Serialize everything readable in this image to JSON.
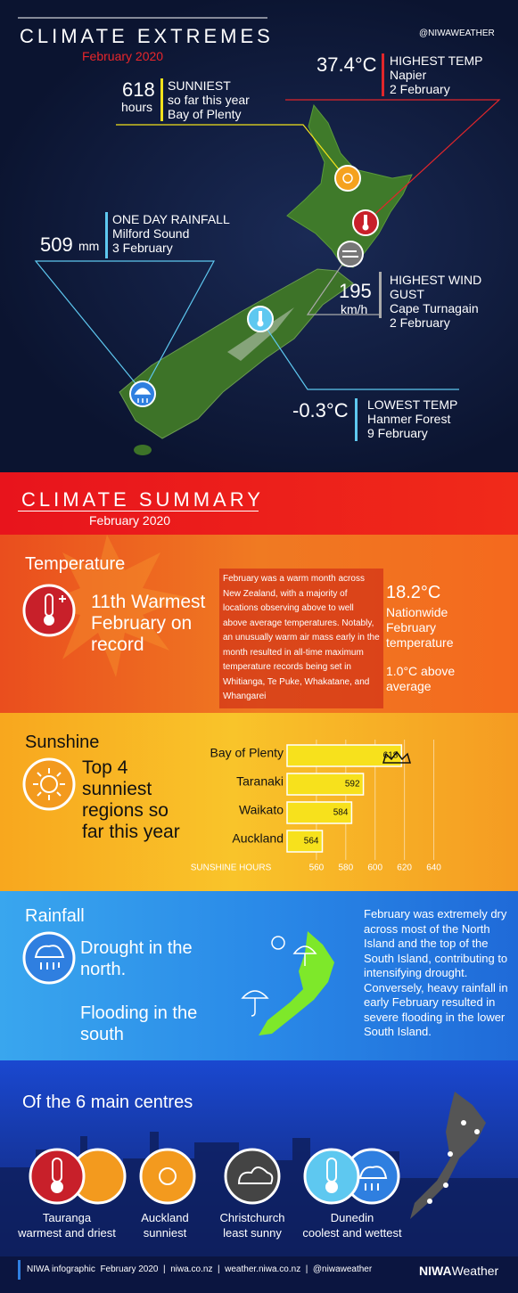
{
  "header": {
    "title": "CLIMATE EXTREMES",
    "subtitle": "February 2020",
    "handle": "@NIWAWEATHER"
  },
  "extremes": {
    "sunniest": {
      "value": "618",
      "unit": "hours",
      "lines": [
        "SUNNIEST",
        "so far this year",
        "Bay of Plenty"
      ]
    },
    "highest_temp": {
      "value": "37.4°C",
      "lines": [
        "HIGHEST TEMP",
        "Napier",
        "2 February"
      ]
    },
    "rainfall": {
      "value": "509",
      "unit": "mm",
      "lines": [
        "ONE DAY RAINFALL",
        "Milford Sound",
        "3 February"
      ]
    },
    "wind": {
      "value": "195",
      "unit": "km/h",
      "lines": [
        "HIGHEST WIND GUST",
        "Cape Turnagain",
        "2 February"
      ]
    },
    "lowest_temp": {
      "value": "-0.3°C",
      "lines": [
        "LOWEST TEMP",
        "Hanmer Forest",
        "9 February"
      ]
    }
  },
  "summary": {
    "title": "CLIMATE SUMMARY",
    "subtitle": "February 2020"
  },
  "temperature": {
    "heading": "Temperature",
    "headline": [
      "11th Warmest",
      "February on",
      "record"
    ],
    "text": "February was a warm month across New Zealand, with a majority of locations observing above to well above average temperatures. Notably, an unusually warm air mass early in the month resulted in all-time maximum temperature records being set in Whitianga, Te Puke, Whakatane, and Whangarei",
    "stat": "18.2°C",
    "stat_label": [
      "Nationwide",
      "February",
      "temperature"
    ],
    "anomaly": [
      "1.0°C above",
      "average"
    ]
  },
  "sunshine": {
    "heading": "Sunshine",
    "headline": [
      "Top 4",
      "sunniest",
      "regions so",
      "far this year"
    ],
    "chart": {
      "type": "bar",
      "orientation": "horizontal",
      "categories": [
        "Bay of Plenty",
        "Taranaki",
        "Waikato",
        "Auckland"
      ],
      "values": [
        618,
        592,
        584,
        564
      ],
      "color": "#f7e11c",
      "xlim": [
        540,
        650
      ],
      "xticks": [
        560,
        580,
        600,
        620,
        640
      ],
      "xlabel": "SUNSHINE HOURS"
    }
  },
  "rainfall": {
    "heading": "Rainfall",
    "points": [
      [
        "Drought in the",
        "north."
      ],
      [
        "Flooding in the",
        "south"
      ]
    ],
    "text": "February was extremely dry across most of the North Island and the top of the South Island, contributing to intensifying drought. Conversely, heavy rainfall in early February resulted in severe flooding in the lower South Island."
  },
  "centres": {
    "heading": "Of the 6 main centres",
    "items": [
      {
        "city": "Tauranga",
        "note": "warmest and driest"
      },
      {
        "city": "Auckland",
        "note": "sunniest"
      },
      {
        "city": "Christchurch",
        "note": "least sunny"
      },
      {
        "city": "Dunedin",
        "note": "coolest and wettest"
      }
    ]
  },
  "footer": {
    "text": "NIWA infographic  February 2020  |  niwa.co.nz  |  weather.niwa.co.nz  |  @niwaweather",
    "logo_a": "NIWA",
    "logo_b": "Weather"
  }
}
